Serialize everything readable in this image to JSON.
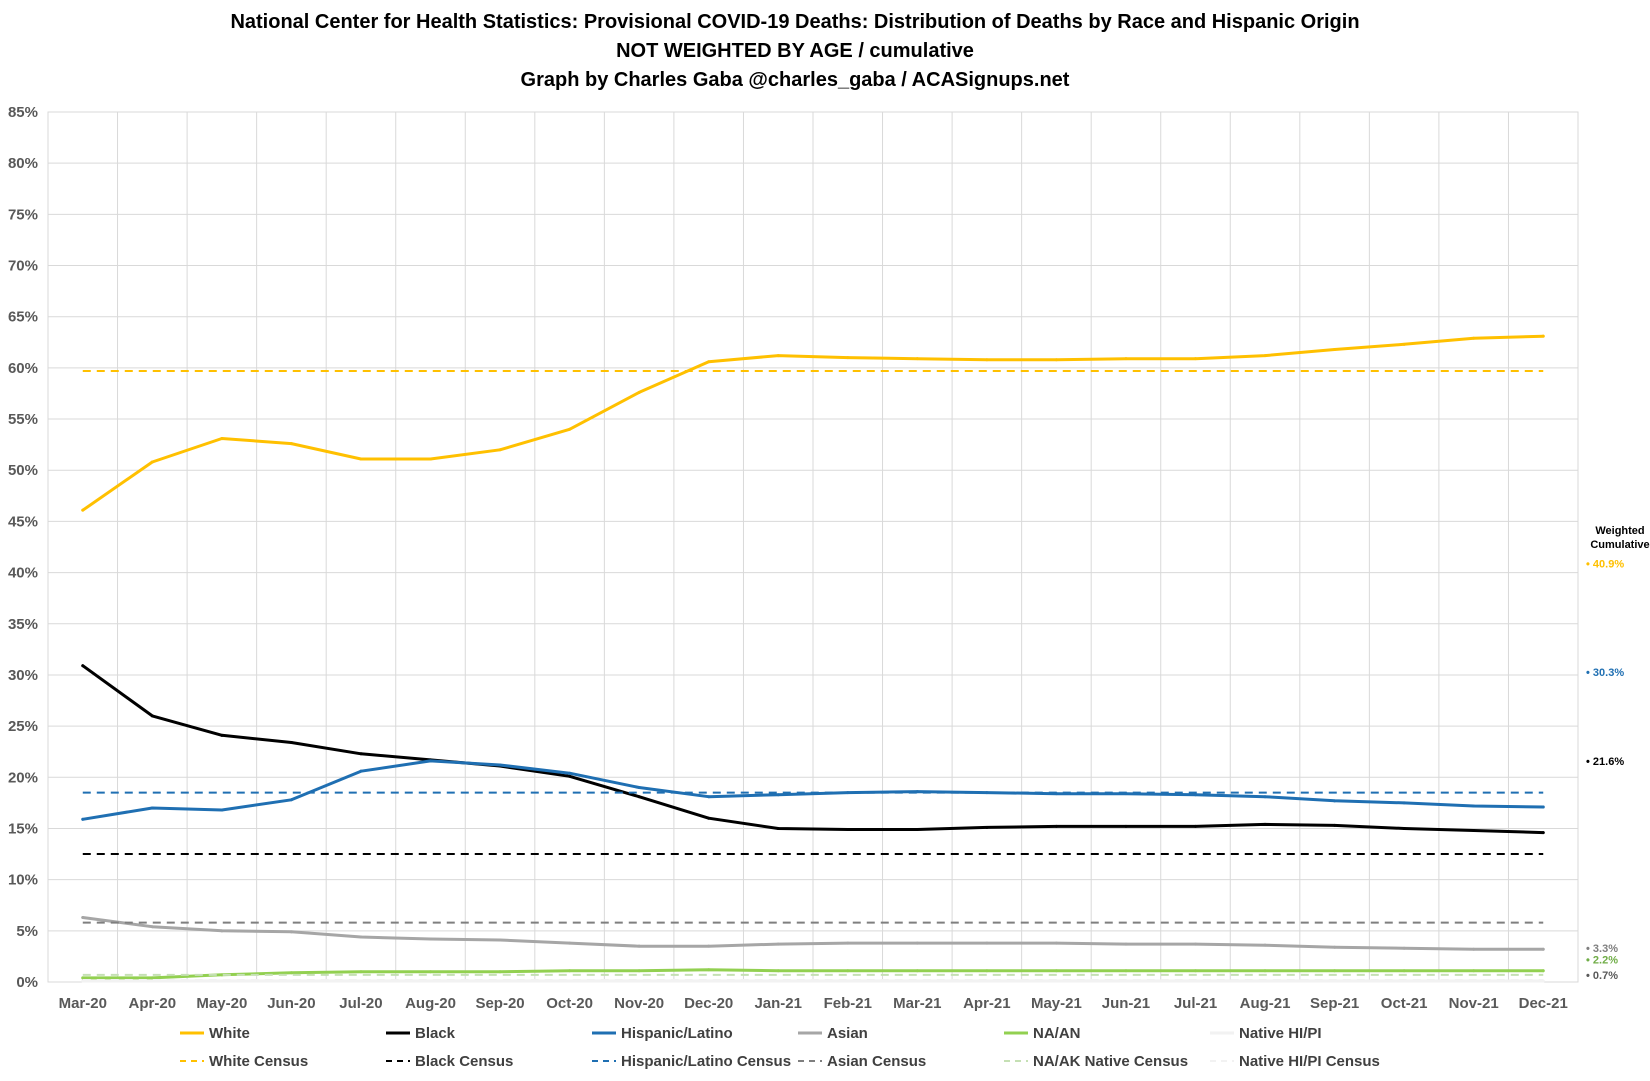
{
  "chart_data": {
    "type": "line",
    "title": "National Center for Health Statistics: Provisional COVID-19 Deaths: Distribution of Deaths by Race and Hispanic Origin",
    "subtitle": "NOT WEIGHTED BY AGE / cumulative",
    "byline": "Graph by Charles Gaba @charles_gaba / ACASignups.net",
    "xlabel": "",
    "ylabel": "",
    "ylim": [
      0,
      85
    ],
    "ytick_step": 5,
    "y_tick_suffix": "%",
    "grid": true,
    "legend_position": "bottom",
    "categories": [
      "Mar-20",
      "Apr-20",
      "May-20",
      "Jun-20",
      "Jul-20",
      "Aug-20",
      "Sep-20",
      "Oct-20",
      "Nov-20",
      "Dec-20",
      "Jan-21",
      "Feb-21",
      "Mar-21",
      "Apr-21",
      "May-21",
      "Jun-21",
      "Jul-21",
      "Aug-21",
      "Sep-21",
      "Oct-21",
      "Nov-21",
      "Dec-21"
    ],
    "series": [
      {
        "name": "White",
        "color": "#FFC000",
        "style": "solid",
        "values": [
          46.1,
          50.8,
          53.1,
          52.6,
          51.1,
          51.1,
          52.0,
          54.0,
          57.6,
          60.6,
          61.2,
          61.0,
          60.9,
          60.8,
          60.8,
          60.9,
          60.9,
          61.2,
          61.8,
          62.3,
          62.9,
          63.1
        ]
      },
      {
        "name": "Black",
        "color": "#000000",
        "style": "solid",
        "values": [
          30.9,
          26.0,
          24.1,
          23.4,
          22.3,
          21.7,
          21.1,
          20.1,
          18.1,
          16.0,
          15.0,
          14.9,
          14.9,
          15.1,
          15.2,
          15.2,
          15.2,
          15.4,
          15.3,
          15.0,
          14.8,
          14.6
        ]
      },
      {
        "name": "Hispanic/Latino",
        "color": "#1F6FB2",
        "style": "solid",
        "values": [
          15.9,
          17.0,
          16.8,
          17.8,
          20.6,
          21.6,
          21.2,
          20.4,
          19.0,
          18.1,
          18.3,
          18.5,
          18.6,
          18.5,
          18.4,
          18.4,
          18.3,
          18.1,
          17.7,
          17.5,
          17.2,
          17.1
        ]
      },
      {
        "name": "Asian",
        "color": "#A6A6A6",
        "style": "solid",
        "values": [
          6.3,
          5.4,
          5.0,
          4.9,
          4.4,
          4.2,
          4.1,
          3.8,
          3.5,
          3.5,
          3.7,
          3.8,
          3.8,
          3.8,
          3.8,
          3.7,
          3.7,
          3.6,
          3.4,
          3.3,
          3.2,
          3.2
        ]
      },
      {
        "name": "NA/AN",
        "color": "#92D050",
        "style": "solid",
        "values": [
          0.4,
          0.4,
          0.7,
          0.9,
          1.0,
          1.0,
          1.0,
          1.1,
          1.1,
          1.2,
          1.1,
          1.1,
          1.1,
          1.1,
          1.1,
          1.1,
          1.1,
          1.1,
          1.1,
          1.1,
          1.1,
          1.1
        ]
      },
      {
        "name": "Native HI/PI",
        "color": "#F2F2F2",
        "style": "solid",
        "values": [
          0.1,
          0.1,
          0.1,
          0.1,
          0.1,
          0.1,
          0.1,
          0.1,
          0.1,
          0.1,
          0.1,
          0.1,
          0.1,
          0.1,
          0.1,
          0.1,
          0.1,
          0.1,
          0.1,
          0.1,
          0.1,
          0.1
        ]
      },
      {
        "name": "White Census",
        "color": "#FFC000",
        "style": "dashed",
        "constant": 59.7
      },
      {
        "name": "Black Census",
        "color": "#000000",
        "style": "dashed",
        "constant": 12.5
      },
      {
        "name": "Hispanic/Latino Census",
        "color": "#1F6FB2",
        "style": "dashed",
        "constant": 18.5
      },
      {
        "name": "Asian Census",
        "color": "#7F7F7F",
        "style": "dashed",
        "constant": 5.8
      },
      {
        "name": "NA/AK Native Census",
        "color": "#C5E0B4",
        "style": "dashed",
        "constant": 0.7
      },
      {
        "name": "Native HI/PI Census",
        "color": "#F2F2F2",
        "style": "dashed",
        "constant": 0.2
      }
    ],
    "side_panel": {
      "heading_line1": "Weighted",
      "heading_line2": "Cumulative",
      "entries": [
        {
          "label": "• 40.9%",
          "value": 40.9,
          "color": "#FFC000"
        },
        {
          "label": "• 30.3%",
          "value": 30.3,
          "color": "#1F6FB2"
        },
        {
          "label": "• 21.6%",
          "value": 21.6,
          "color": "#000000"
        },
        {
          "label": "• 3.3%",
          "value": 3.3,
          "color": "#7F7F7F"
        },
        {
          "label": "• 2.2%",
          "value": 2.2,
          "color": "#70AD47"
        },
        {
          "label": "• 0.7%",
          "value": 0.7,
          "color": "#595959"
        }
      ]
    }
  }
}
